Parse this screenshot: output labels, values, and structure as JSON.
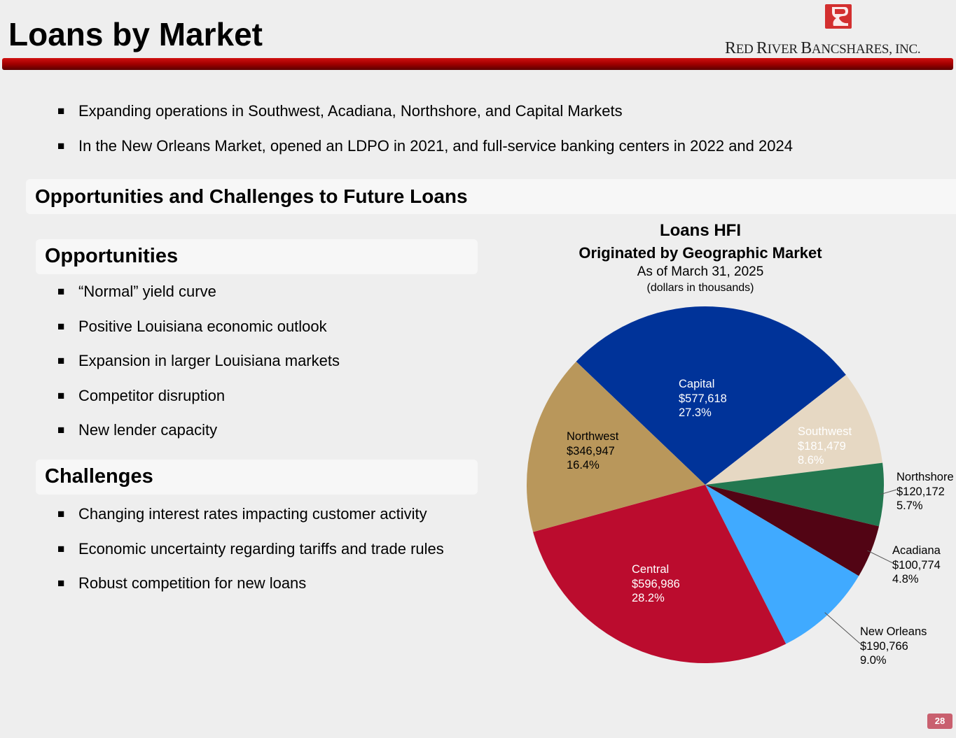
{
  "header": {
    "title": "Loans by Market",
    "logo_text_main": "Red River Bancshares, Inc.",
    "logo_text": [
      "R",
      "ED ",
      "R",
      "IVER ",
      "B",
      "ANCSHARES, ",
      "INC."
    ]
  },
  "intro_bullets": [
    "Expanding operations in Southwest, Acadiana, Northshore, and Capital Markets",
    "In the New Orleans Market, opened an LDPO in 2021, and full-service banking centers in 2022 and 2024"
  ],
  "section_title": "Opportunities and Challenges to Future Loans",
  "opportunities": {
    "title": "Opportunities",
    "items": [
      "“Normal” yield curve",
      "Positive Louisiana economic outlook",
      "Expansion in larger Louisiana markets",
      "Competitor disruption",
      "New lender capacity"
    ]
  },
  "challenges": {
    "title": "Challenges",
    "items": [
      "Changing interest rates impacting customer activity",
      "Economic uncertainty regarding tariffs and trade rules",
      "Robust competition for new loans"
    ]
  },
  "page_number": "28",
  "chart_data": {
    "type": "pie",
    "title": "Loans HFI",
    "subtitle": "Originated by Geographic Market",
    "date": "As of March 31, 2025",
    "units": "(dollars in thousands)",
    "slices": [
      {
        "name": "Capital",
        "value_label": "$577,618",
        "pct_label": "27.3%",
        "value": 577618,
        "pct": 27.3,
        "color": "#003399"
      },
      {
        "name": "Southwest",
        "value_label": "$181,479",
        "pct_label": "8.6%",
        "value": 181479,
        "pct": 8.6,
        "color": "#e6d8c3"
      },
      {
        "name": "Northshore",
        "value_label": "$120,172",
        "pct_label": "5.7%",
        "value": 120172,
        "pct": 5.7,
        "color": "#237850"
      },
      {
        "name": "Acadiana",
        "value_label": "$100,774",
        "pct_label": "4.8%",
        "value": 100774,
        "pct": 4.8,
        "color": "#520414"
      },
      {
        "name": "New Orleans",
        "value_label": "$190,766",
        "pct_label": "9.0%",
        "value": 190766,
        "pct": 9.0,
        "color": "#40aaff"
      },
      {
        "name": "Central",
        "value_label": "$596,986",
        "pct_label": "28.2%",
        "value": 596986,
        "pct": 28.2,
        "color": "#bb0c2e"
      },
      {
        "name": "Northwest",
        "value_label": "$346,947",
        "pct_label": "16.4%",
        "value": 346947,
        "pct": 16.4,
        "color": "#b9975b"
      }
    ]
  }
}
